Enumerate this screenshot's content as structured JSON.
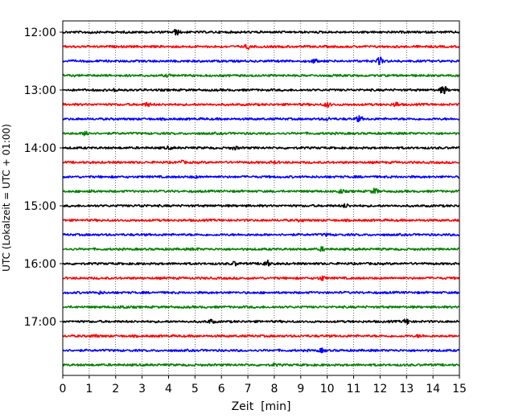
{
  "chart_data": {
    "type": "line",
    "title": "",
    "xlabel": "Zeit  [min]",
    "ylabel": "UTC (Lokalzeit = UTC + 01:00)",
    "xlim": [
      0,
      15
    ],
    "x_ticks": [
      0,
      1,
      2,
      3,
      4,
      5,
      6,
      7,
      8,
      9,
      10,
      11,
      12,
      13,
      14,
      15
    ],
    "y_tick_labels": [
      "12:00",
      "13:00",
      "14:00",
      "15:00",
      "16:00",
      "17:00"
    ],
    "grid": "vertical dotted",
    "legend": "none",
    "trace_interval_min": 15,
    "trace_colors": [
      "#000000",
      "#ff0000",
      "#0000ff",
      "#008000"
    ],
    "traces": [
      {
        "start": "12:00",
        "color": "#000000",
        "events": [
          {
            "t": 4.3,
            "amp": 3
          },
          {
            "t": 1.0,
            "amp": 1
          }
        ]
      },
      {
        "start": "12:15",
        "color": "#ff0000",
        "events": [
          {
            "t": 7.0,
            "amp": 2
          }
        ]
      },
      {
        "start": "12:30",
        "color": "#0000ff",
        "events": [
          {
            "t": 9.5,
            "amp": 2
          },
          {
            "t": 12.0,
            "amp": 4
          }
        ]
      },
      {
        "start": "12:45",
        "color": "#008000",
        "events": [
          {
            "t": 4.0,
            "amp": 1
          }
        ]
      },
      {
        "start": "13:00",
        "color": "#000000",
        "events": [
          {
            "t": 14.4,
            "amp": 5
          },
          {
            "t": 2.0,
            "amp": 1.5
          }
        ]
      },
      {
        "start": "13:15",
        "color": "#ff0000",
        "events": [
          {
            "t": 3.2,
            "amp": 2
          },
          {
            "t": 10.0,
            "amp": 2.5
          },
          {
            "t": 12.6,
            "amp": 2.5
          }
        ]
      },
      {
        "start": "13:30",
        "color": "#0000ff",
        "events": [
          {
            "t": 11.2,
            "amp": 3
          },
          {
            "t": 10.0,
            "amp": 1.5
          }
        ]
      },
      {
        "start": "13:45",
        "color": "#008000",
        "events": [
          {
            "t": 0.9,
            "amp": 3
          }
        ]
      },
      {
        "start": "14:00",
        "color": "#000000",
        "events": [
          {
            "t": 6.5,
            "amp": 1.5
          },
          {
            "t": 4.0,
            "amp": 1.2
          }
        ]
      },
      {
        "start": "14:15",
        "color": "#ff0000",
        "events": [
          {
            "t": 4.5,
            "amp": 1.5
          },
          {
            "t": 8.0,
            "amp": 1.2
          }
        ]
      },
      {
        "start": "14:30",
        "color": "#0000ff",
        "events": [
          {
            "t": 5.0,
            "amp": 1
          }
        ]
      },
      {
        "start": "14:45",
        "color": "#008000",
        "events": [
          {
            "t": 10.5,
            "amp": 2
          },
          {
            "t": 11.8,
            "amp": 3
          },
          {
            "t": 1.0,
            "amp": 1.2
          }
        ]
      },
      {
        "start": "15:00",
        "color": "#000000",
        "events": [
          {
            "t": 10.7,
            "amp": 2
          },
          {
            "t": 3.0,
            "amp": 1
          }
        ]
      },
      {
        "start": "15:15",
        "color": "#ff0000",
        "events": [
          {
            "t": 9.0,
            "amp": 1
          }
        ]
      },
      {
        "start": "15:30",
        "color": "#0000ff",
        "events": [
          {
            "t": 10.0,
            "amp": 1
          }
        ]
      },
      {
        "start": "15:45",
        "color": "#008000",
        "events": [
          {
            "t": 9.8,
            "amp": 2
          },
          {
            "t": 5.0,
            "amp": 1
          }
        ]
      },
      {
        "start": "16:00",
        "color": "#000000",
        "events": [
          {
            "t": 6.5,
            "amp": 2
          },
          {
            "t": 7.7,
            "amp": 4
          }
        ]
      },
      {
        "start": "16:15",
        "color": "#ff0000",
        "events": [
          {
            "t": 9.8,
            "amp": 2.5
          }
        ]
      },
      {
        "start": "16:30",
        "color": "#0000ff",
        "events": [
          {
            "t": 1.4,
            "amp": 1.2
          }
        ]
      },
      {
        "start": "16:45",
        "color": "#008000",
        "events": [
          {
            "t": 2.3,
            "amp": 1.5
          }
        ]
      },
      {
        "start": "17:00",
        "color": "#000000",
        "events": [
          {
            "t": 5.6,
            "amp": 2
          },
          {
            "t": 13.0,
            "amp": 3
          }
        ]
      },
      {
        "start": "17:15",
        "color": "#ff0000",
        "events": [
          {
            "t": 1.2,
            "amp": 1.2
          },
          {
            "t": 13.5,
            "amp": 1.2
          }
        ]
      },
      {
        "start": "17:30",
        "color": "#0000ff",
        "events": [
          {
            "t": 9.8,
            "amp": 2
          }
        ]
      },
      {
        "start": "17:45",
        "color": "#008000",
        "events": [
          {
            "t": 8.0,
            "amp": 1
          }
        ]
      }
    ]
  }
}
